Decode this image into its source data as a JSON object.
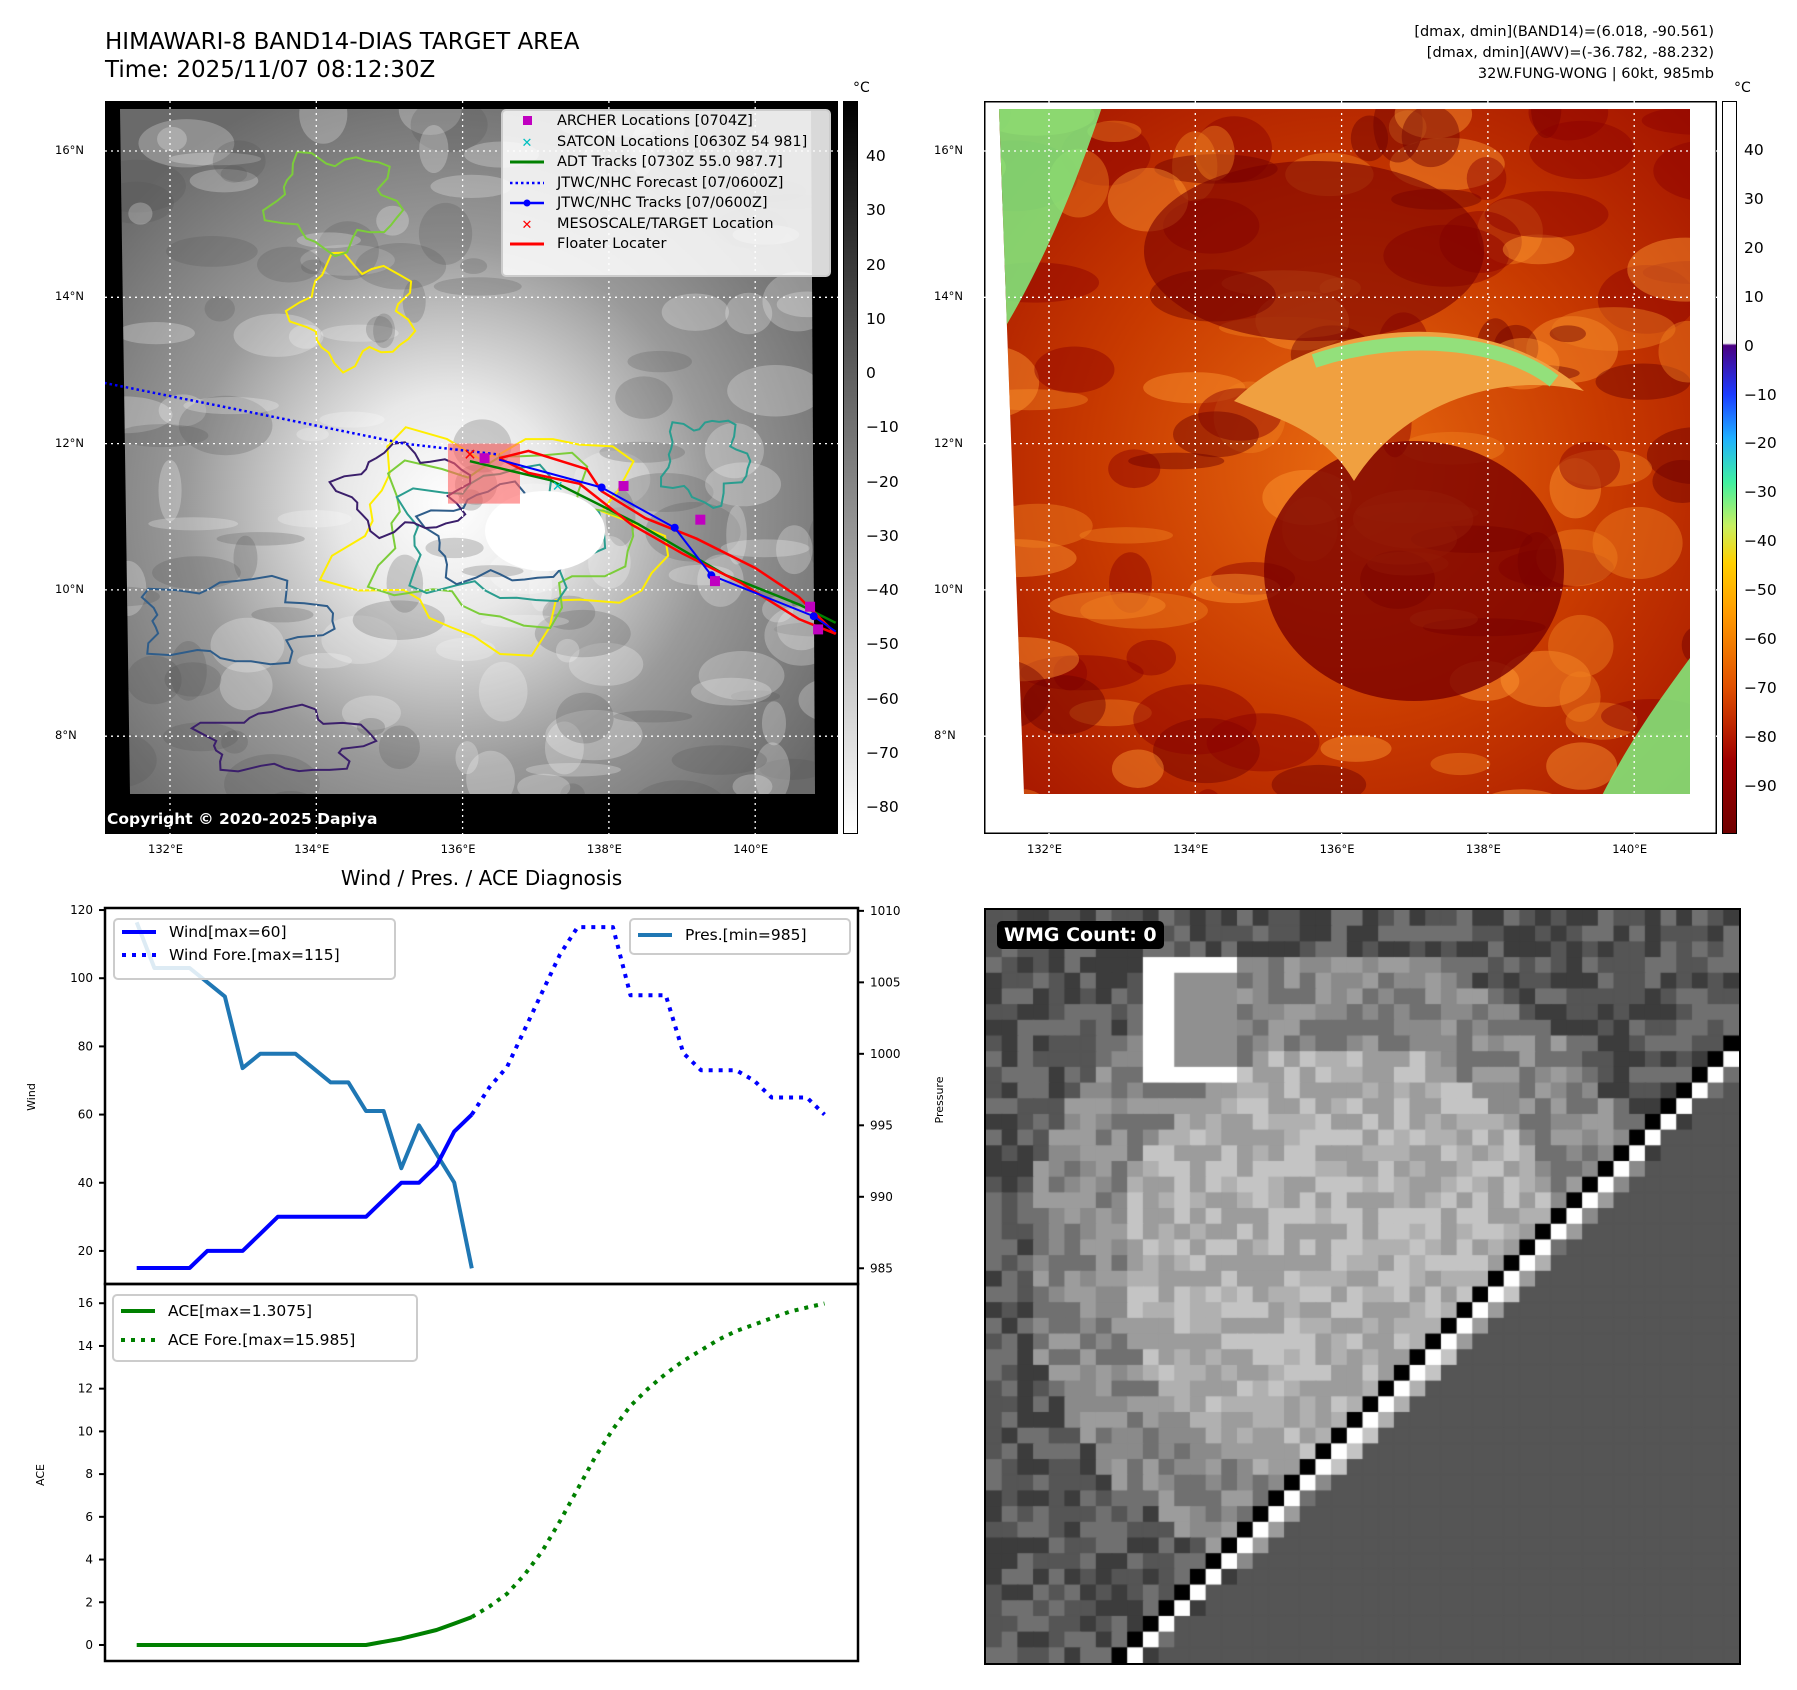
{
  "header": {
    "title": "HIMAWARI-8 BAND14-DIAS TARGET AREA",
    "time": "Time: 2025/11/07 08:12:30Z",
    "stats_band14": "[dmax, dmin](BAND14)=(6.018, -90.561)",
    "stats_awv": "[dmax, dmin](AWV)=(-36.782, -88.232)",
    "storm": "32W.FUNG-WONG | 60kt, 985mb"
  },
  "map_ir": {
    "unit": "°C",
    "copyright": "Copyright © 2020-2025 Dapiya",
    "lat_ticks": [
      "16°N",
      "14°N",
      "12°N",
      "10°N",
      "8°N"
    ],
    "lon_ticks": [
      "132°E",
      "134°E",
      "136°E",
      "138°E",
      "140°E"
    ],
    "colorbar_ticks": [
      "40",
      "30",
      "20",
      "10",
      "0",
      "−10",
      "−20",
      "−30",
      "−40",
      "−50",
      "−60",
      "−70",
      "−80"
    ],
    "legend": [
      {
        "label": "ARCHER Locations [0704Z]",
        "symbol": "square",
        "color": "#c000c0"
      },
      {
        "label": "SATCON Locations [0630Z 54 981]",
        "symbol": "x",
        "color": "#00c0c0"
      },
      {
        "label": "ADT Tracks [0730Z 55.0 987.7]",
        "symbol": "line",
        "color": "#008000"
      },
      {
        "label": "JTWC/NHC Forecast [07/0600Z]",
        "symbol": "dotted",
        "color": "#0000ff"
      },
      {
        "label": "JTWC/NHC Tracks [07/0600Z]",
        "symbol": "line-dot",
        "color": "#0000ff"
      },
      {
        "label": "MESOSCALE/TARGET Location",
        "symbol": "x",
        "color": "#ff0000"
      },
      {
        "label": "Floater Locater",
        "symbol": "line",
        "color": "#ff0000"
      }
    ],
    "tracks": {
      "jtwc_forecast": [
        [
          131.1,
          12.83
        ],
        [
          133.0,
          12.45
        ],
        [
          135.2,
          12.0
        ],
        [
          136.5,
          11.85
        ]
      ],
      "jtwc_track": [
        [
          136.5,
          11.78
        ],
        [
          137.9,
          11.4
        ],
        [
          138.9,
          10.85
        ],
        [
          139.4,
          10.2
        ],
        [
          140.8,
          9.64
        ],
        [
          141.1,
          9.43
        ]
      ],
      "adt_track": [
        [
          136.1,
          11.76
        ],
        [
          137.2,
          11.5
        ],
        [
          138.4,
          10.9
        ],
        [
          139.6,
          10.2
        ],
        [
          140.6,
          9.8
        ],
        [
          141.1,
          9.55
        ]
      ],
      "floater": [
        [
          136.5,
          11.8
        ],
        [
          136.9,
          11.9
        ],
        [
          137.7,
          11.65
        ],
        [
          137.9,
          11.35
        ],
        [
          138.5,
          10.98
        ],
        [
          139.2,
          10.7
        ],
        [
          140.0,
          10.3
        ],
        [
          140.6,
          9.9
        ],
        [
          141.1,
          9.4
        ],
        [
          140.6,
          9.6
        ],
        [
          139.8,
          10.1
        ],
        [
          139.0,
          10.5
        ],
        [
          138.3,
          10.9
        ],
        [
          137.6,
          11.45
        ],
        [
          136.9,
          11.6
        ],
        [
          136.5,
          11.8
        ]
      ],
      "archer": [
        [
          136.3,
          11.8
        ],
        [
          138.2,
          11.42
        ],
        [
          139.25,
          10.96
        ],
        [
          139.45,
          10.12
        ],
        [
          140.75,
          9.77
        ],
        [
          140.86,
          9.46
        ]
      ],
      "satcon": [
        [
          137.3,
          11.42
        ]
      ],
      "target": [
        [
          136.1,
          11.86
        ]
      ]
    }
  },
  "map_awv": {
    "unit": "°C",
    "lat_ticks": [
      "16°N",
      "14°N",
      "12°N",
      "10°N",
      "8°N"
    ],
    "lon_ticks": [
      "132°E",
      "134°E",
      "136°E",
      "138°E",
      "140°E"
    ],
    "colorbar_ticks": [
      "40",
      "30",
      "20",
      "10",
      "0",
      "−10",
      "−20",
      "−30",
      "−40",
      "−50",
      "−60",
      "−70",
      "−80",
      "−90"
    ]
  },
  "wmg": {
    "label": "WMG Count: 0"
  },
  "chart_data": [
    {
      "type": "line",
      "title": "Wind / Pres. / ACE Diagnosis",
      "ylabel": "Wind",
      "ylabel_right": "Pressure",
      "ylim": [
        10.3,
        120.6
      ],
      "ylim_right": [
        983.9,
        1010.2
      ],
      "xlim": [
        -1.8,
        40.9
      ],
      "yticks": [
        20,
        40,
        60,
        80,
        100,
        120
      ],
      "yticks_right": [
        985,
        990,
        995,
        1000,
        1005,
        1010
      ],
      "series": [
        {
          "name": "Wind[max=60]",
          "axis": "left",
          "style": "solid",
          "color": "#0000ff",
          "x": [
            0,
            1,
            2,
            3,
            4,
            5,
            6,
            7,
            8,
            9,
            10,
            11,
            12,
            13,
            14,
            15,
            16,
            17,
            18,
            19
          ],
          "values": [
            15,
            15,
            15,
            15,
            20,
            20,
            20,
            25,
            30,
            30,
            30,
            30,
            30,
            30,
            35,
            40,
            40,
            45,
            55,
            60
          ]
        },
        {
          "name": "Wind Fore.[max=115]",
          "axis": "left",
          "style": "dotted",
          "color": "#0000ff",
          "x": [
            19,
            20,
            21,
            22,
            23,
            24,
            25,
            26,
            27,
            28,
            29,
            30,
            31,
            32,
            33,
            34,
            35,
            36,
            37,
            38,
            39
          ],
          "values": [
            60,
            68,
            74,
            85,
            96,
            107,
            115,
            115,
            115,
            95,
            95,
            95,
            78,
            73,
            73,
            73,
            70,
            65,
            65,
            65,
            60
          ]
        },
        {
          "name": "Pres.[min=985]",
          "axis": "right",
          "style": "solid",
          "color": "#1f77b4",
          "x": [
            0,
            1,
            2,
            3,
            4,
            5,
            6,
            7,
            8,
            9,
            10,
            11,
            12,
            13,
            14,
            15,
            16,
            17,
            18,
            19
          ],
          "values": [
            1009.2,
            1006,
            1006,
            1006,
            1005,
            1004,
            999,
            1000,
            1000,
            1000,
            999,
            998,
            998,
            996,
            996,
            992,
            995,
            993,
            991,
            985
          ]
        }
      ]
    },
    {
      "type": "line",
      "ylabel": "ACE",
      "ylim": [
        -0.75,
        16.9
      ],
      "xlim": [
        -1.8,
        40.9
      ],
      "yticks": [
        0,
        2,
        4,
        6,
        8,
        10,
        12,
        14,
        16
      ],
      "series": [
        {
          "name": "ACE[max=1.3075]",
          "style": "solid",
          "color": "#008000",
          "x": [
            0,
            1,
            2,
            3,
            4,
            5,
            6,
            7,
            8,
            9,
            10,
            11,
            12,
            13,
            14,
            15,
            16,
            17,
            18,
            19
          ],
          "values": [
            0,
            0,
            0,
            0,
            0,
            0,
            0,
            0,
            0,
            0,
            0,
            0,
            0,
            0,
            0.15,
            0.3,
            0.5,
            0.7,
            1.0,
            1.3075
          ]
        },
        {
          "name": "ACE Fore.[max=15.985]",
          "style": "dotted",
          "color": "#008000",
          "x": [
            19,
            20,
            21,
            22,
            23,
            24,
            25,
            26,
            27,
            28,
            29,
            30,
            31,
            32,
            33,
            34,
            35,
            36,
            37,
            38,
            39
          ],
          "values": [
            1.31,
            1.8,
            2.4,
            3.3,
            4.4,
            5.8,
            7.3,
            8.8,
            10.1,
            11.2,
            12.0,
            12.7,
            13.3,
            13.8,
            14.3,
            14.7,
            15.0,
            15.3,
            15.6,
            15.8,
            15.985
          ]
        }
      ]
    }
  ]
}
